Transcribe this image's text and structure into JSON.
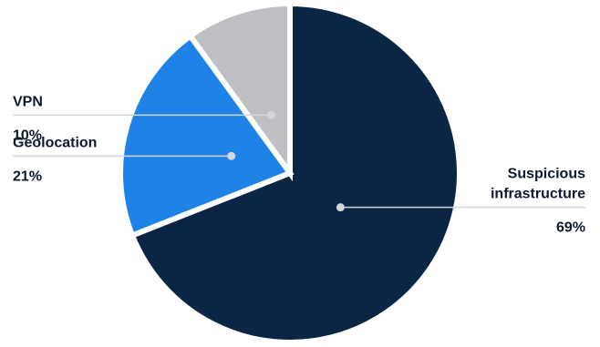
{
  "chart_data": {
    "type": "pie",
    "title": "",
    "slices": [
      {
        "label": "Suspicious infrastructure",
        "label_lines": [
          "Suspicious",
          "infrastructure"
        ],
        "value": 69,
        "value_label": "69%",
        "color": "#0b2545"
      },
      {
        "label": "Geolocation",
        "label_lines": [
          "Geolocation"
        ],
        "value": 21,
        "value_label": "21%",
        "color": "#1e82e6"
      },
      {
        "label": "VPN",
        "label_lines": [
          "VPN"
        ],
        "value": 10,
        "value_label": "10%",
        "color": "#bdbfc2"
      }
    ],
    "legend": "none",
    "start": "top",
    "direction": "clockwise"
  }
}
